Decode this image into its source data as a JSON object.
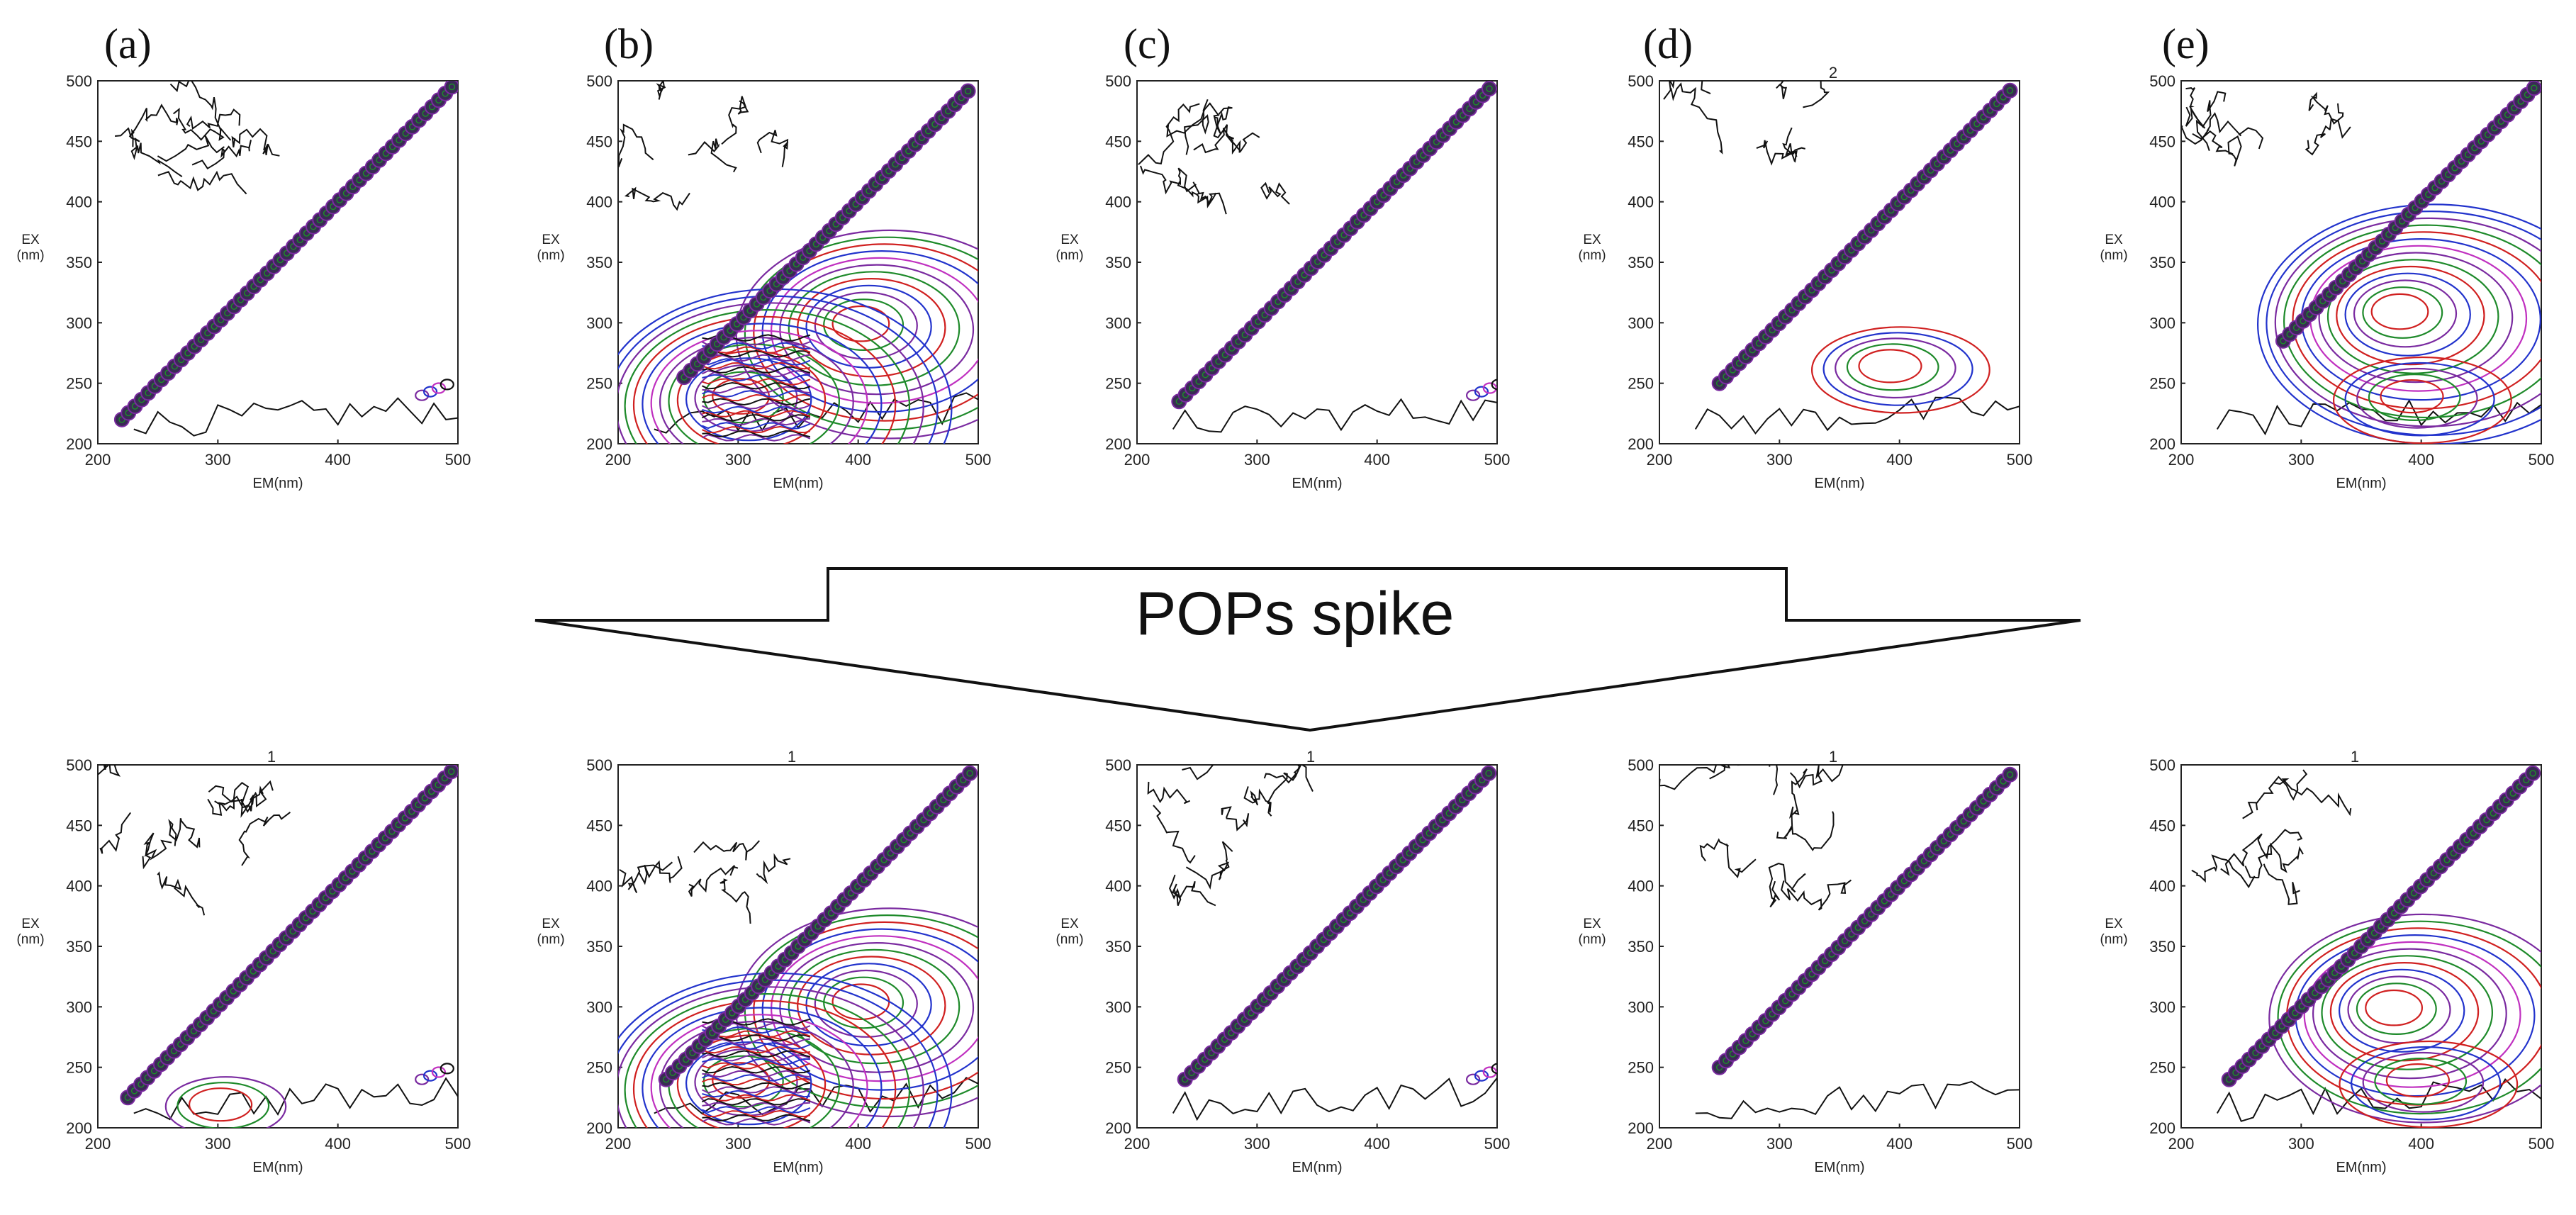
{
  "figure": {
    "arrow_label": "POPs spike",
    "colors": {
      "black": "#111111",
      "blue": "#2233cc",
      "red": "#d02020",
      "green": "#1e8a2a",
      "purple": "#7a2aa0",
      "magenta": "#c030c0"
    }
  },
  "chart_data": [
    {
      "type": "contour",
      "panel": "(a)",
      "row": "before",
      "xlabel": "EM(nm)",
      "ylabel": "EX\n(nm)",
      "xlim": [
        200,
        500
      ],
      "ylim": [
        200,
        500
      ],
      "xticks": [
        "200",
        "300",
        "400",
        "500"
      ],
      "yticks": [
        "200",
        "250",
        "300",
        "350",
        "400",
        "450",
        "500"
      ],
      "corner_text": "",
      "peaks": [],
      "extra_peaks": [
        {
          "em": 470,
          "ex": 240,
          "label": "rayleigh-second-order"
        }
      ],
      "diagonal_start": 220,
      "intensity": "low"
    },
    {
      "type": "contour",
      "panel": "(b)",
      "row": "before",
      "xlabel": "EM(nm)",
      "ylabel": "EX\n(nm)",
      "xlim": [
        200,
        500
      ],
      "ylim": [
        200,
        500
      ],
      "xticks": [
        "200",
        "300",
        "400",
        "500"
      ],
      "yticks": [
        "200",
        "250",
        "300",
        "350",
        "400",
        "450",
        "500"
      ],
      "corner_text": "",
      "peaks": [
        {
          "em": 400,
          "ex": 300,
          "levels": 12
        },
        {
          "em": 300,
          "ex": 240,
          "levels": 14
        }
      ],
      "diagonal_start": 255,
      "intensity": "high"
    },
    {
      "type": "contour",
      "panel": "(c)",
      "row": "before",
      "xlabel": "EM(nm)",
      "ylabel": "EX\n(nm)",
      "xlim": [
        200,
        500
      ],
      "ylim": [
        200,
        500
      ],
      "xticks": [
        "200",
        "300",
        "400",
        "500"
      ],
      "yticks": [
        "200",
        "250",
        "300",
        "350",
        "400",
        "450",
        "500"
      ],
      "corner_text": "",
      "peaks": [],
      "extra_peaks": [
        {
          "em": 480,
          "ex": 240,
          "label": "rayleigh-second-order"
        }
      ],
      "diagonal_start": 235,
      "intensity": "low"
    },
    {
      "type": "contour",
      "panel": "(d)",
      "row": "before",
      "xlabel": "EM(nm)",
      "ylabel": "EX\n(nm)",
      "xlim": [
        200,
        500
      ],
      "ylim": [
        200,
        500
      ],
      "xticks": [
        "200",
        "300",
        "400",
        "500"
      ],
      "yticks": [
        "200",
        "250",
        "300",
        "350",
        "400",
        "450",
        "500"
      ],
      "corner_text": "2",
      "peaks": [
        {
          "em": 390,
          "ex": 265,
          "levels": 5
        }
      ],
      "diagonal_start": 250,
      "intensity": "medium"
    },
    {
      "type": "contour",
      "panel": "(e)",
      "row": "before",
      "xlabel": "EM(nm)",
      "ylabel": "EX\n(nm)",
      "xlim": [
        200,
        500
      ],
      "ylim": [
        200,
        500
      ],
      "xticks": [
        "200",
        "300",
        "400",
        "500"
      ],
      "yticks": [
        "200",
        "250",
        "300",
        "350",
        "400",
        "450",
        "500"
      ],
      "corner_text": "",
      "peaks": [
        {
          "em": 380,
          "ex": 310,
          "levels": 14
        },
        {
          "em": 390,
          "ex": 240,
          "levels": 5
        }
      ],
      "diagonal_start": 285,
      "intensity": "high"
    },
    {
      "type": "contour",
      "panel": "(a)",
      "row": "after",
      "xlabel": "EM(nm)",
      "ylabel": "EX\n(nm)",
      "xlim": [
        200,
        500
      ],
      "ylim": [
        200,
        500
      ],
      "xticks": [
        "200",
        "300",
        "400",
        "500"
      ],
      "yticks": [
        "200",
        "250",
        "300",
        "350",
        "400",
        "450",
        "500"
      ],
      "corner_text": "1",
      "peaks": [
        {
          "em": 300,
          "ex": 220,
          "levels": 3
        }
      ],
      "extra_peaks": [
        {
          "em": 470,
          "ex": 240,
          "label": "rayleigh-second-order"
        }
      ],
      "diagonal_start": 225,
      "intensity": "low"
    },
    {
      "type": "contour",
      "panel": "(b)",
      "row": "after",
      "xlabel": "EM(nm)",
      "ylabel": "EX\n(nm)",
      "xlim": [
        200,
        500
      ],
      "ylim": [
        200,
        500
      ],
      "xticks": [
        "200",
        "300",
        "400",
        "500"
      ],
      "yticks": [
        "200",
        "250",
        "300",
        "350",
        "400",
        "450",
        "500"
      ],
      "corner_text": "1",
      "peaks": [
        {
          "em": 400,
          "ex": 305,
          "levels": 12
        },
        {
          "em": 300,
          "ex": 240,
          "levels": 14
        }
      ],
      "diagonal_start": 240,
      "intensity": "high"
    },
    {
      "type": "contour",
      "panel": "(c)",
      "row": "after",
      "xlabel": "EM(nm)",
      "ylabel": "EX\n(nm)",
      "xlim": [
        200,
        500
      ],
      "ylim": [
        200,
        500
      ],
      "xticks": [
        "200",
        "300",
        "400",
        "500"
      ],
      "yticks": [
        "200",
        "250",
        "300",
        "350",
        "400",
        "450",
        "500"
      ],
      "corner_text": "1",
      "peaks": [],
      "extra_peaks": [
        {
          "em": 480,
          "ex": 240,
          "label": "rayleigh-second-order"
        }
      ],
      "diagonal_start": 240,
      "intensity": "low"
    },
    {
      "type": "contour",
      "panel": "(d)",
      "row": "after",
      "xlabel": "EM(nm)",
      "ylabel": "EX\n(nm)",
      "xlim": [
        200,
        500
      ],
      "ylim": [
        200,
        500
      ],
      "xticks": [
        "200",
        "300",
        "400",
        "500"
      ],
      "yticks": [
        "200",
        "250",
        "300",
        "350",
        "400",
        "450",
        "500"
      ],
      "corner_text": "1",
      "peaks": [],
      "diagonal_start": 250,
      "intensity": "low"
    },
    {
      "type": "contour",
      "panel": "(e)",
      "row": "after",
      "xlabel": "EM(nm)",
      "ylabel": "EX\n(nm)",
      "xlim": [
        200,
        500
      ],
      "ylim": [
        200,
        500
      ],
      "xticks": [
        "200",
        "300",
        "400",
        "500"
      ],
      "yticks": [
        "200",
        "250",
        "300",
        "350",
        "400",
        "450",
        "500"
      ],
      "corner_text": "1",
      "peaks": [
        {
          "em": 375,
          "ex": 300,
          "levels": 12
        },
        {
          "em": 395,
          "ex": 240,
          "levels": 5
        }
      ],
      "diagonal_start": 240,
      "intensity": "high"
    }
  ]
}
